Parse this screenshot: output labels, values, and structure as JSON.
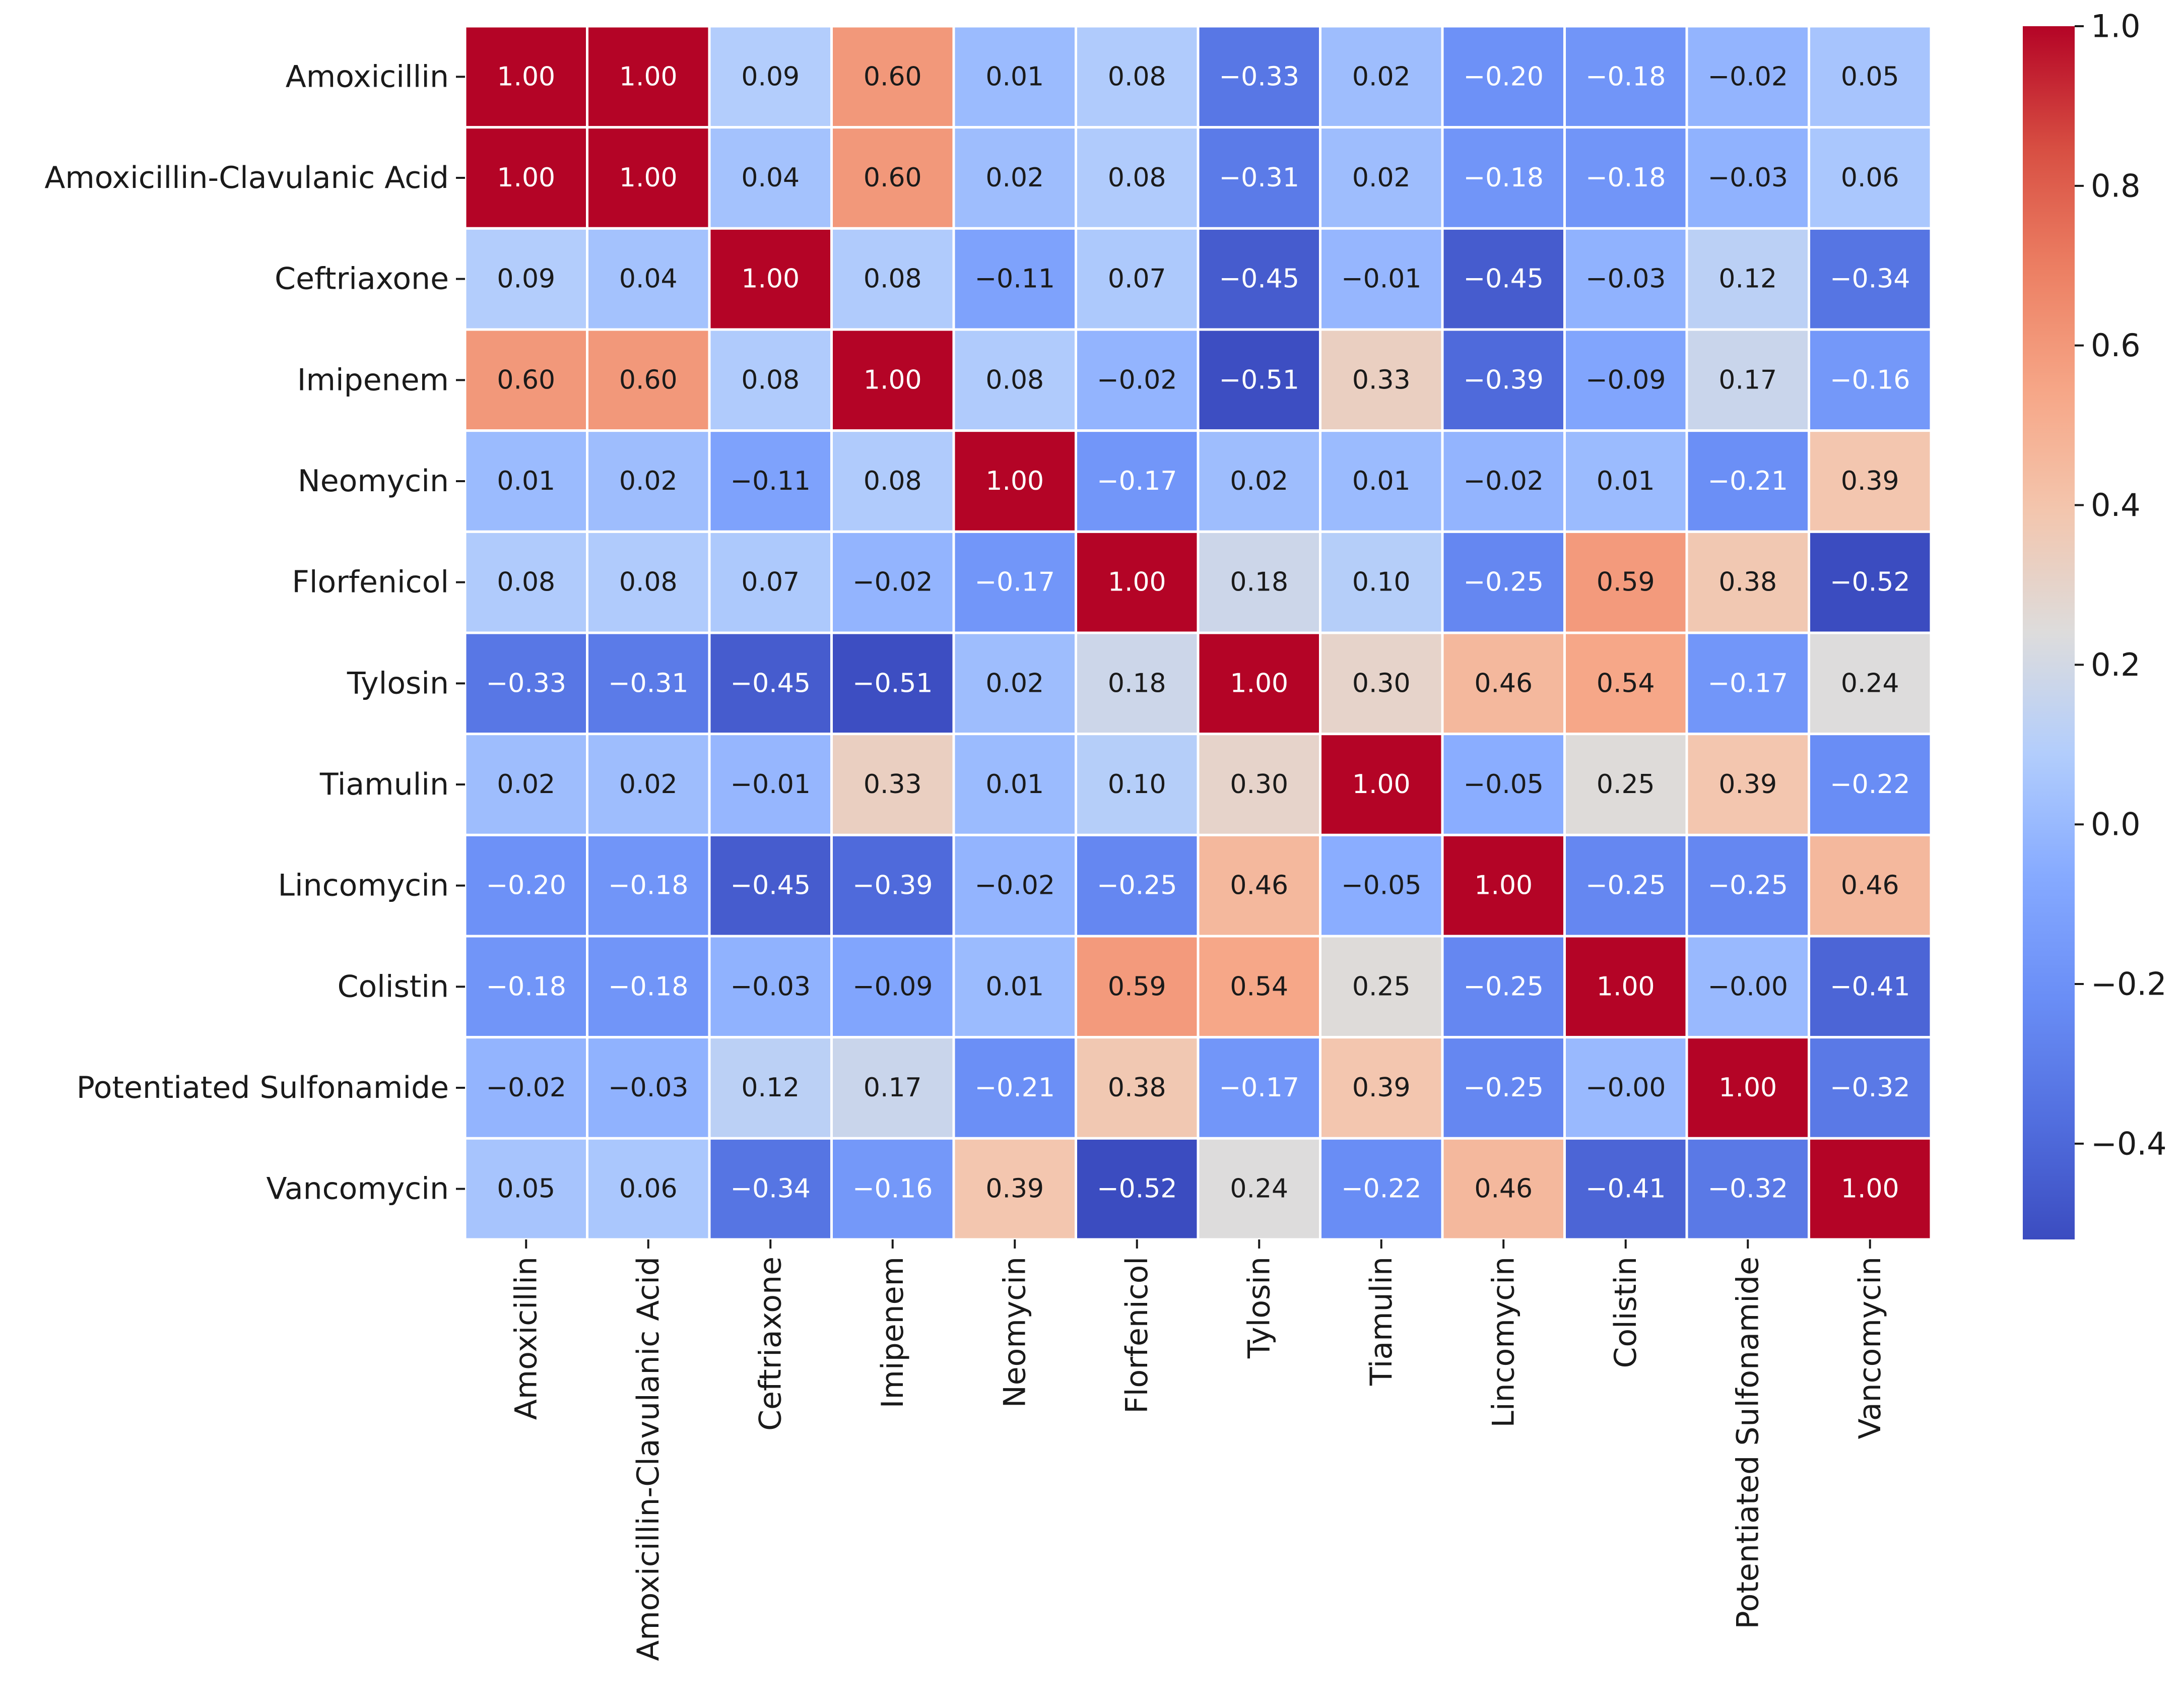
{
  "chart_data": {
    "type": "heatmap",
    "title": "",
    "xlabel": "",
    "ylabel": "",
    "colormap": "coolwarm",
    "vmin": -0.52,
    "vmax": 1.0,
    "labels": [
      "Amoxicillin",
      "Amoxicillin-Clavulanic Acid",
      "Ceftriaxone",
      "Imipenem",
      "Neomycin",
      "Florfenicol",
      "Tylosin",
      "Tiamulin",
      "Lincomycin",
      "Colistin",
      "Potentiated Sulfonamide",
      "Vancomycin"
    ],
    "matrix": [
      [
        1.0,
        1.0,
        0.09,
        0.6,
        0.01,
        0.08,
        -0.33,
        0.02,
        -0.2,
        -0.18,
        -0.02,
        0.05
      ],
      [
        1.0,
        1.0,
        0.04,
        0.6,
        0.02,
        0.08,
        -0.31,
        0.02,
        -0.18,
        -0.18,
        -0.03,
        0.06
      ],
      [
        0.09,
        0.04,
        1.0,
        0.08,
        -0.11,
        0.07,
        -0.45,
        -0.01,
        -0.45,
        -0.03,
        0.12,
        -0.34
      ],
      [
        0.6,
        0.6,
        0.08,
        1.0,
        0.08,
        -0.02,
        -0.51,
        0.33,
        -0.39,
        -0.09,
        0.17,
        -0.16
      ],
      [
        0.01,
        0.02,
        -0.11,
        0.08,
        1.0,
        -0.17,
        0.02,
        0.01,
        -0.02,
        0.01,
        -0.21,
        0.39
      ],
      [
        0.08,
        0.08,
        0.07,
        -0.02,
        -0.17,
        1.0,
        0.18,
        0.1,
        -0.25,
        0.59,
        0.38,
        -0.52
      ],
      [
        -0.33,
        -0.31,
        -0.45,
        -0.51,
        0.02,
        0.18,
        1.0,
        0.3,
        0.46,
        0.54,
        -0.17,
        0.24
      ],
      [
        0.02,
        0.02,
        -0.01,
        0.33,
        0.01,
        0.1,
        0.3,
        1.0,
        -0.05,
        0.25,
        0.39,
        -0.22
      ],
      [
        -0.2,
        -0.18,
        -0.45,
        -0.39,
        -0.02,
        -0.25,
        0.46,
        -0.05,
        1.0,
        -0.25,
        -0.25,
        0.46
      ],
      [
        -0.18,
        -0.18,
        -0.03,
        -0.09,
        0.01,
        0.59,
        0.54,
        0.25,
        -0.25,
        1.0,
        -0.0,
        -0.41
      ],
      [
        -0.02,
        -0.03,
        0.12,
        0.17,
        -0.21,
        0.38,
        -0.17,
        0.39,
        -0.25,
        -0.0,
        1.0,
        -0.32
      ],
      [
        0.05,
        0.06,
        -0.34,
        -0.16,
        0.39,
        -0.52,
        0.24,
        -0.22,
        0.46,
        -0.41,
        -0.32,
        1.0
      ]
    ],
    "colorbar": {
      "ticks": [
        1.0,
        0.8,
        0.6,
        0.4,
        0.2,
        0.0,
        -0.2,
        -0.4
      ],
      "tick_labels": [
        "1.0",
        "0.8",
        "0.6",
        "0.4",
        "0.2",
        "0.0",
        "−0.2",
        "−0.4"
      ]
    }
  }
}
